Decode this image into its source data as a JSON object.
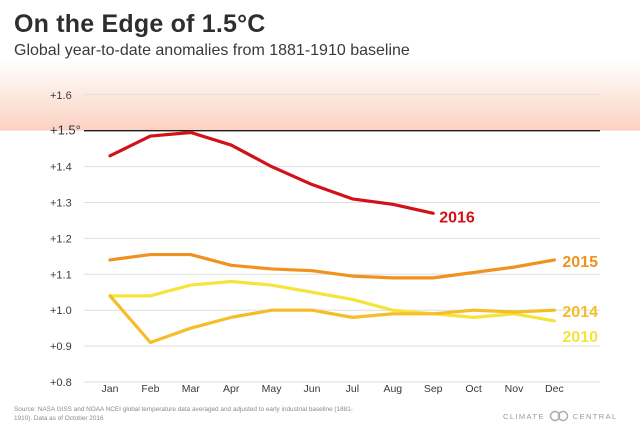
{
  "title": "On the Edge of 1.5°C",
  "subtitle": "Global year-to-date anomalies from 1881-1910 baseline",
  "source": "Source: NASA GISS and NOAA NCEI global temperature data averaged and adjusted to early industrial baseline (1881-1910). Data as of October 2016",
  "brand": {
    "left": "CLIMATE",
    "right": "CENTRAL"
  },
  "chart_data": {
    "type": "line",
    "categories": [
      "Jan",
      "Feb",
      "Mar",
      "Apr",
      "May",
      "Jun",
      "Jul",
      "Aug",
      "Sep",
      "Oct",
      "Nov",
      "Dec"
    ],
    "yticks": [
      0.8,
      0.9,
      1.0,
      1.1,
      1.2,
      1.3,
      1.4,
      1.5,
      1.6
    ],
    "ytick_labels": [
      "+0.8",
      "+0.9",
      "+1.0",
      "+1.1",
      "+1.2",
      "+1.3",
      "+1.4",
      "+1.5°",
      "+1.6"
    ],
    "ylim": [
      0.8,
      1.7
    ],
    "threshold": 1.5,
    "threshold_band": [
      1.5,
      1.7
    ],
    "grid": true,
    "series": [
      {
        "name": "2016",
        "color": "#d0121b",
        "values": [
          1.43,
          1.485,
          1.495,
          1.46,
          1.4,
          1.35,
          1.31,
          1.295,
          1.27,
          null,
          null,
          null
        ],
        "label_at": 8,
        "label_dx": 6,
        "label_dy": 4
      },
      {
        "name": "2015",
        "color": "#f0921e",
        "values": [
          1.14,
          1.155,
          1.155,
          1.125,
          1.115,
          1.11,
          1.095,
          1.09,
          1.09,
          1.105,
          1.12,
          1.14
        ],
        "label_at": 11,
        "label_dx": 8,
        "label_dy": 2
      },
      {
        "name": "2014",
        "color": "#f5bd28",
        "values": [
          1.04,
          0.91,
          0.95,
          0.98,
          1.0,
          1.0,
          0.98,
          0.99,
          0.99,
          1.0,
          0.995,
          1.0
        ],
        "label_at": 11,
        "label_dx": 8,
        "label_dy": 2
      },
      {
        "name": "2010",
        "color": "#f5e43c",
        "values": [
          1.04,
          1.04,
          1.07,
          1.08,
          1.07,
          1.05,
          1.03,
          1.0,
          0.99,
          0.98,
          0.99,
          0.97
        ],
        "label_at": 11,
        "label_dx": 8,
        "label_dy": 16
      }
    ]
  }
}
